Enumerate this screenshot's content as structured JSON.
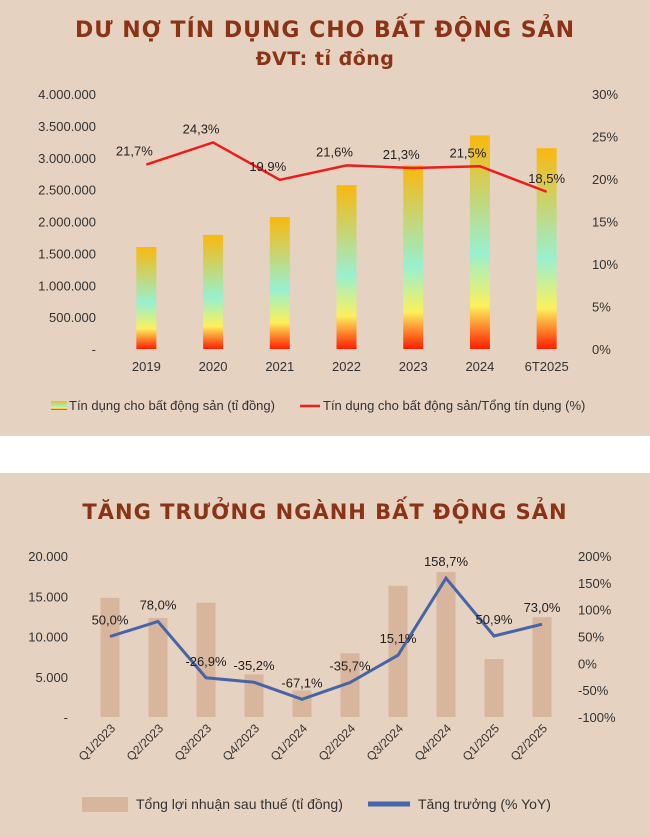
{
  "chart_data": [
    {
      "type": "bar",
      "title": "DƯ NỢ TÍN DỤNG CHO BẤT ĐỘNG SẢN",
      "subtitle": "ĐVT: tỉ đồng",
      "categories": [
        "2019",
        "2020",
        "2021",
        "2022",
        "2023",
        "2024",
        "6T2025"
      ],
      "y_ticks": [
        "4.000.000",
        "3.500.000",
        "3.000.000",
        "2.500.000",
        "2.000.000",
        "1.500.000",
        "1.000.000",
        "500.000",
        "-"
      ],
      "y2_ticks": [
        "30%",
        "25%",
        "20%",
        "15%",
        "10%",
        "5%",
        "0%"
      ],
      "ylim": [
        0,
        4000000
      ],
      "y2lim": [
        0,
        30
      ],
      "series": [
        {
          "name": "Tín dụng cho bất động sản (tỉ đồng)",
          "type": "bar",
          "values": [
            1600000,
            1790000,
            2070000,
            2570000,
            2880000,
            3350000,
            3150000
          ]
        },
        {
          "name": "Tín dụng cho bất động sản/Tổng tín dụng (%)",
          "type": "line",
          "axis": "right",
          "values": [
            21.7,
            24.3,
            19.9,
            21.6,
            21.3,
            21.5,
            18.5
          ],
          "labels": [
            "21,7%",
            "24,3%",
            "19,9%",
            "21,6%",
            "21,3%",
            "21,5%",
            "18,5%"
          ]
        }
      ],
      "colors": {
        "line": "#ee1c1c",
        "bar_top": "#f9b80e",
        "bar_mid": "#98f0d0",
        "bar_bottom": "#ff1d00"
      },
      "legend": "bottom",
      "grid": false
    },
    {
      "type": "bar",
      "title": "TĂNG TRƯỞNG NGÀNH BẤT ĐỘNG SẢN",
      "categories": [
        "Q1/2023",
        "Q2/2023",
        "Q3/2023",
        "Q4/2023",
        "Q1/2024",
        "Q2/2024",
        "Q3/2024",
        "Q4/2024",
        "Q1/2025",
        "Q2/2025"
      ],
      "y_ticks": [
        "20.000",
        "15.000",
        "10.000",
        "5.000",
        "-"
      ],
      "y2_ticks": [
        "200%",
        "150%",
        "100%",
        "50%",
        "0%",
        "-50%",
        "-100%"
      ],
      "ylim": [
        0,
        20000
      ],
      "y2lim": [
        -100,
        200
      ],
      "series": [
        {
          "name": "Tổng lợi nhuận sau thuế (tỉ đồng)",
          "type": "bar",
          "values": [
            14800,
            12300,
            14200,
            5300,
            3300,
            7900,
            16300,
            18000,
            7200,
            12400
          ]
        },
        {
          "name": "Tăng trưởng (% YoY)",
          "type": "line",
          "axis": "right",
          "values": [
            50.0,
            78.0,
            -26.9,
            -35.2,
            -67.1,
            -35.7,
            15.1,
            158.7,
            50.9,
            73.0
          ],
          "labels": [
            "50,0%",
            "78,0%",
            "-26,9%",
            "-35,2%",
            "-67,1%",
            "-35,7%",
            "15,1%",
            "158,7%",
            "50,9%",
            "73,0%"
          ]
        }
      ],
      "colors": {
        "bar": "#d8b69e",
        "line": "#4664a6"
      },
      "legend": "bottom",
      "grid": false
    }
  ]
}
